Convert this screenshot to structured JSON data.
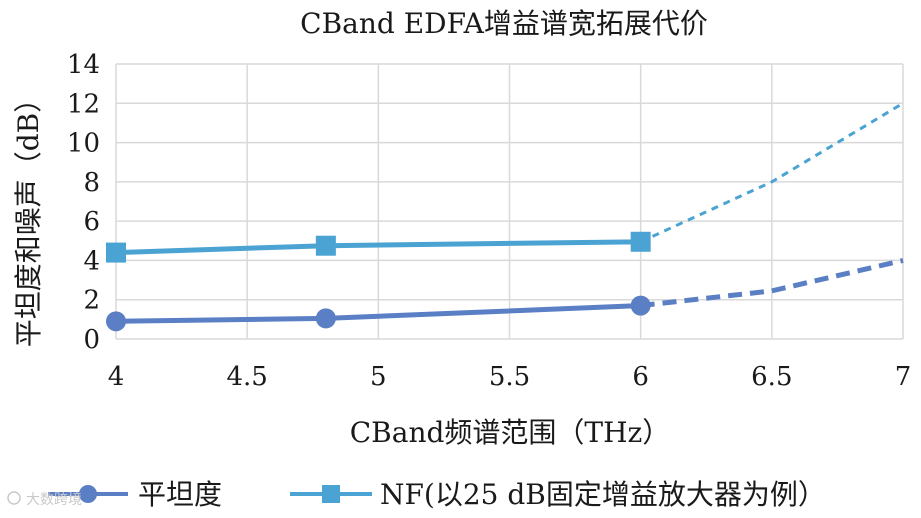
{
  "chart_data": {
    "type": "line",
    "title": "CBand EDFA增益谱宽拓展代价",
    "xlabel": "CBand频谱范围（THz）",
    "ylabel": "平坦度和噪声（dB）",
    "xlim": [
      4,
      7
    ],
    "ylim": [
      0,
      14
    ],
    "x_ticks": [
      "4",
      "4.5",
      "5",
      "5.5",
      "6",
      "6.5",
      "7"
    ],
    "y_ticks": [
      "0",
      "2",
      "4",
      "6",
      "8",
      "10",
      "12",
      "14"
    ],
    "grid": true,
    "legend_position": "bottom",
    "series": [
      {
        "name": "平坦度",
        "color": "#5b7fc4",
        "marker": "circle",
        "x": [
          4,
          4.8,
          6
        ],
        "values": [
          0.9,
          1.05,
          1.7
        ],
        "projected_x": [
          6,
          6.5,
          7
        ],
        "projected_values": [
          1.7,
          2.45,
          4.0
        ]
      },
      {
        "name": "NF(以25 dB固定增益放大器为例）",
        "color": "#4aa3d3",
        "marker": "square",
        "x": [
          4,
          4.8,
          6
        ],
        "values": [
          4.4,
          4.75,
          4.95
        ],
        "projected_x": [
          6,
          6.5,
          7
        ],
        "projected_values": [
          4.95,
          8.0,
          12.0
        ]
      }
    ]
  },
  "watermark": "大数跨境"
}
